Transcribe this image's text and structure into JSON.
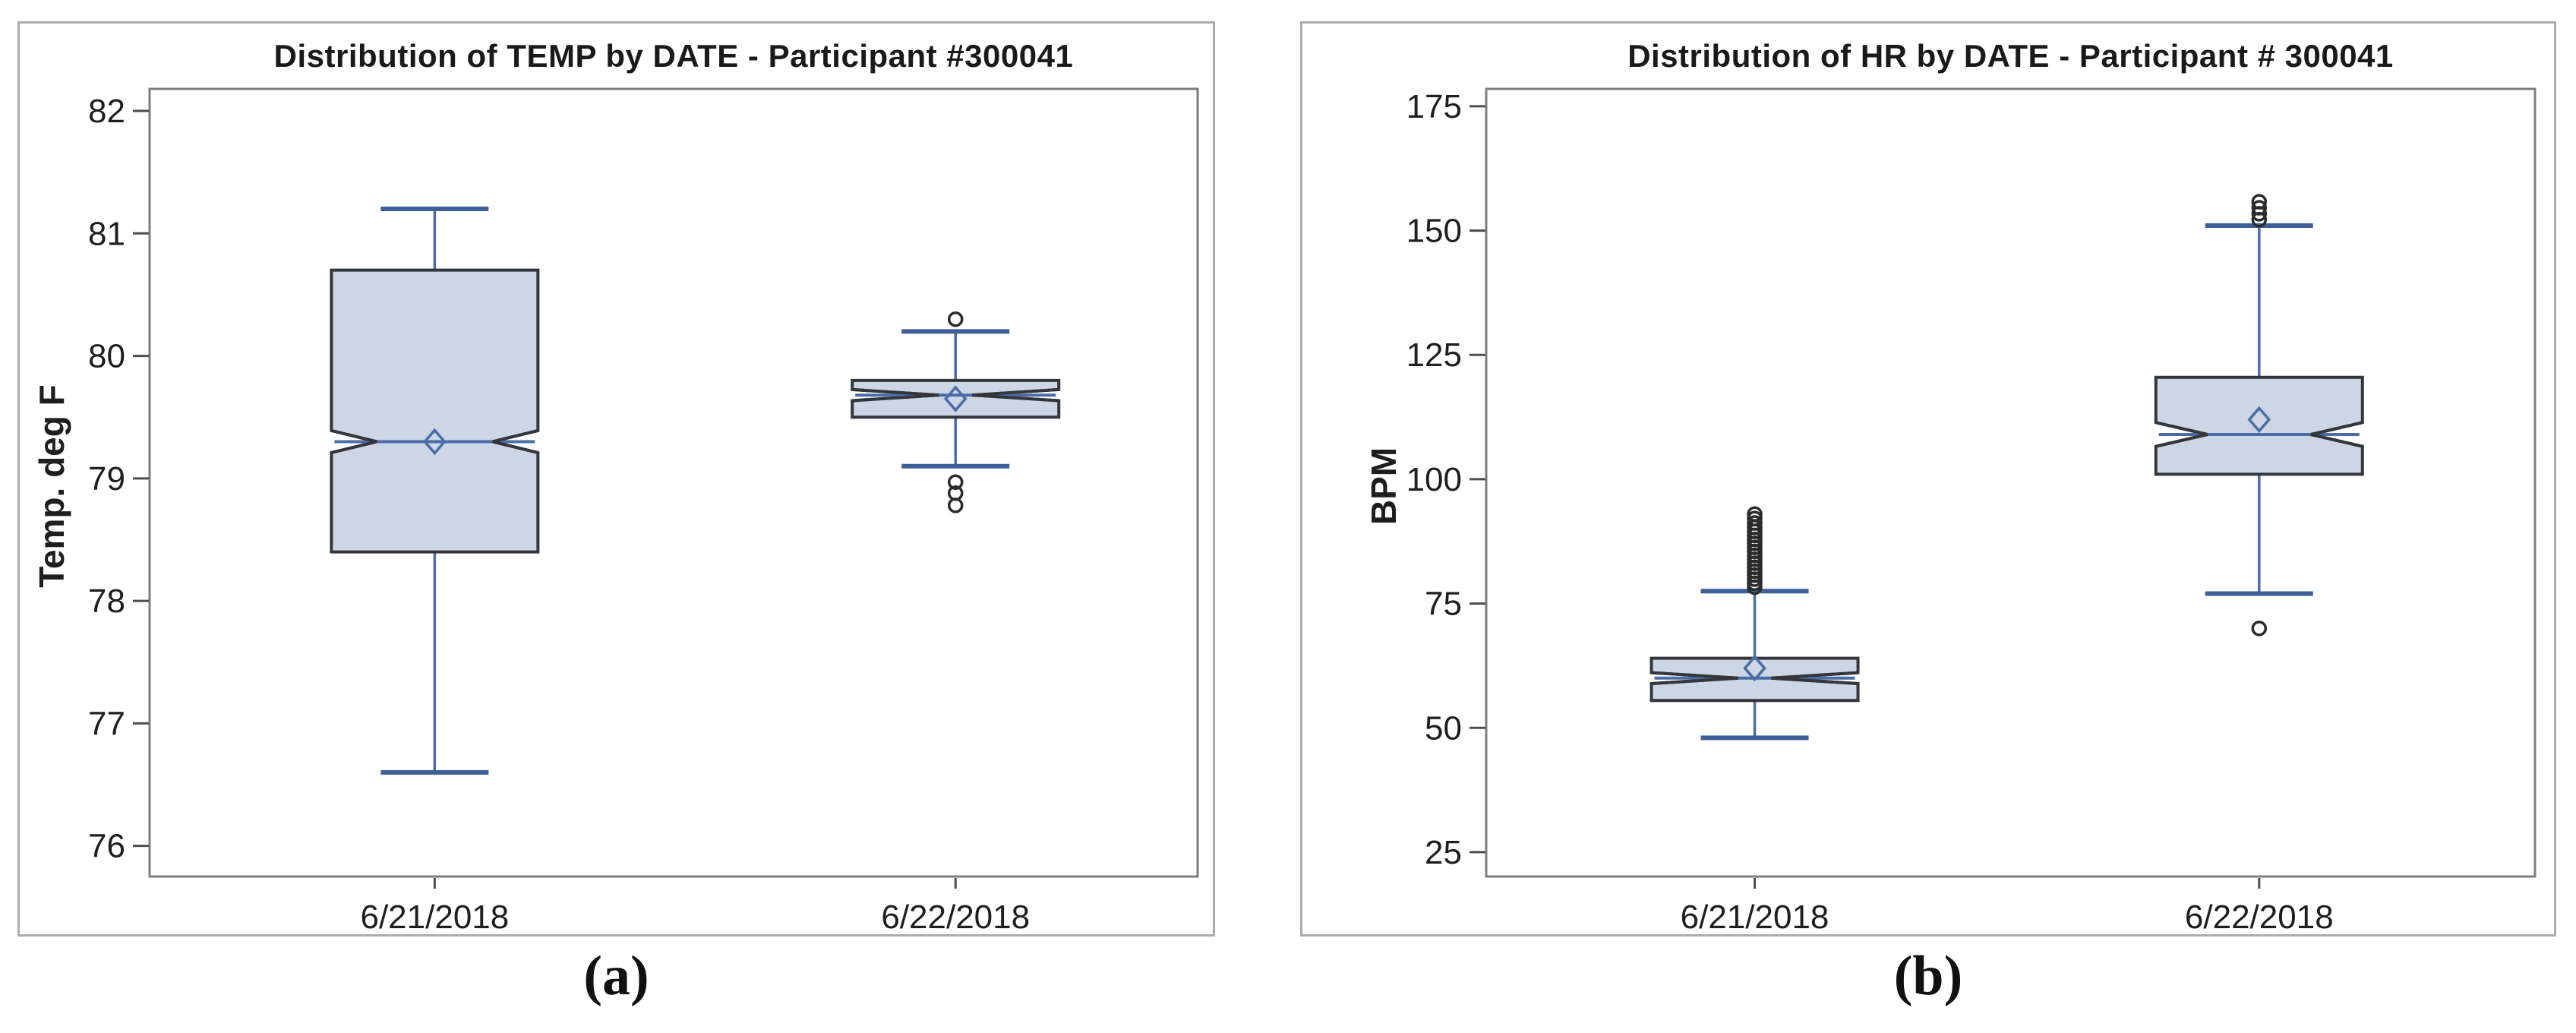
{
  "style": {
    "box_fill": "#ccd6e5",
    "box_stroke": "#33363a",
    "whisker": "#4a6da7",
    "whisker_cap": "#3f5f98",
    "median": "#4a6da7",
    "mean_marker": "#4a6da7",
    "outlier": "#2b2b2b",
    "tick": "#4d4d4d",
    "tick_text": "#1e1e1e",
    "plot_border": "#7d7d7d",
    "panel_border": "#ababab",
    "title": "#1a1a1a"
  },
  "chart_data": [
    {
      "type": "box",
      "panel": "a",
      "title": "Distribution of TEMP by DATE - Participant #300041",
      "ylabel": "Temp. deg F",
      "xlabel": "",
      "caption": "(a)",
      "grid": false,
      "legend": null,
      "yticks": [
        76,
        77,
        78,
        79,
        80,
        81,
        82
      ],
      "ylim": [
        75.75,
        82.18
      ],
      "categories": [
        "6/21/2018",
        "6/22/2018"
      ],
      "boxes": [
        {
          "category": "6/21/2018",
          "whisker_low": 76.6,
          "q1": 78.4,
          "median": 79.3,
          "q3": 80.7,
          "whisker_high": 81.2,
          "mean": 79.3,
          "outliers": [],
          "notch_half": 0.09,
          "notch_depth_frac": 0.22
        },
        {
          "category": "6/22/2018",
          "whisker_low": 79.1,
          "q1": 79.5,
          "median": 79.68,
          "q3": 79.8,
          "whisker_high": 80.2,
          "mean": 79.65,
          "outliers": [
            80.3,
            78.97,
            78.88,
            78.78
          ],
          "notch_half": 0.045,
          "notch_depth_frac": 0.42
        }
      ]
    },
    {
      "type": "box",
      "panel": "b",
      "title": "Distribution of HR by DATE - Participant # 300041",
      "ylabel": "BPM",
      "xlabel": "",
      "caption": "(b)",
      "grid": false,
      "legend": null,
      "yticks": [
        25,
        50,
        75,
        100,
        125,
        150,
        175
      ],
      "ylim": [
        20.1,
        178.5
      ],
      "categories": [
        "6/21/2018",
        "6/22/2018"
      ],
      "boxes": [
        {
          "category": "6/21/2018",
          "whisker_low": 48,
          "q1": 55.5,
          "median": 60,
          "q3": 64,
          "whisker_high": 77.5,
          "mean": 62,
          "outliers": [
            78.3,
            79.1,
            79.9,
            80.7,
            81.5,
            82.3,
            83.1,
            83.9,
            84.7,
            85.5,
            86.3,
            87.1,
            87.9,
            88.7,
            89.5,
            90.3,
            91.2,
            92.1,
            93.0
          ],
          "notch_half": 1.1,
          "notch_depth_frac": 0.42
        },
        {
          "category": "6/22/2018",
          "whisker_low": 77,
          "q1": 101,
          "median": 109,
          "q3": 120.5,
          "whisker_high": 151,
          "mean": 112,
          "outliers": [
            152.2,
            153.4,
            154.6,
            155.8,
            70
          ],
          "notch_half": 2.4,
          "notch_depth_frac": 0.25
        }
      ]
    }
  ]
}
